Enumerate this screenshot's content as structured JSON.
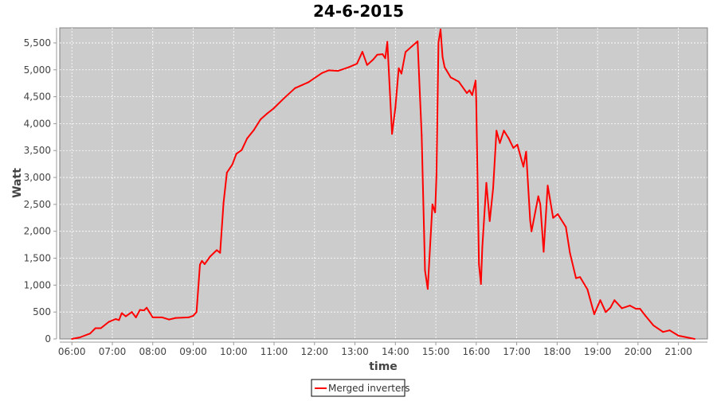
{
  "chart_data": {
    "type": "line",
    "title": "24-6-2015",
    "xlabel": "time",
    "ylabel": "Watt",
    "xlim": [
      "05:42",
      "21:43"
    ],
    "ylim": [
      0,
      5780
    ],
    "grid": true,
    "legend_position": "bottom",
    "background_color": "#cccccc",
    "x_ticks": [
      "06:00",
      "07:00",
      "08:00",
      "09:00",
      "10:00",
      "11:00",
      "12:00",
      "13:00",
      "14:00",
      "15:00",
      "16:00",
      "17:00",
      "18:00",
      "19:00",
      "20:00",
      "21:00"
    ],
    "y_ticks": [
      0,
      500,
      1000,
      1500,
      2000,
      2500,
      3000,
      3500,
      4000,
      4500,
      5000,
      5500
    ],
    "y_tick_labels": [
      "0",
      "500",
      "1,000",
      "1,500",
      "2,000",
      "2,500",
      "3,000",
      "3,500",
      "4,000",
      "4,500",
      "5,000",
      "5,500"
    ],
    "series": [
      {
        "name": "Merged inverters",
        "color": "#ff0000",
        "x": [
          "06:00",
          "06:12",
          "06:27",
          "06:35",
          "06:43",
          "06:55",
          "07:05",
          "07:10",
          "07:14",
          "07:20",
          "07:29",
          "07:35",
          "07:41",
          "07:47",
          "07:51",
          "08:00",
          "08:14",
          "08:24",
          "08:34",
          "08:53",
          "09:00",
          "09:05",
          "09:10",
          "09:13",
          "09:17",
          "09:25",
          "09:35",
          "09:40",
          "09:45",
          "09:50",
          "09:58",
          "10:04",
          "10:12",
          "10:20",
          "10:30",
          "10:40",
          "10:49",
          "10:59",
          "11:15",
          "11:31",
          "11:51",
          "12:11",
          "12:21",
          "12:35",
          "12:51",
          "13:03",
          "13:11",
          "13:18",
          "13:27",
          "13:33",
          "13:41",
          "13:45",
          "13:48",
          "13:55",
          "14:00",
          "14:05",
          "14:09",
          "14:15",
          "14:33",
          "14:39",
          "14:44",
          "14:48",
          "14:55",
          "14:59",
          "15:01",
          "15:04",
          "15:07",
          "15:10",
          "15:13",
          "15:22",
          "15:34",
          "15:46",
          "15:50",
          "15:54",
          "15:59",
          "16:00",
          "16:04",
          "16:07",
          "16:09",
          "16:15",
          "16:20",
          "16:25",
          "16:30",
          "16:35",
          "16:41",
          "16:48",
          "16:55",
          "17:01",
          "17:10",
          "17:14",
          "17:20",
          "17:22",
          "17:32",
          "17:35",
          "17:40",
          "17:46",
          "17:54",
          "18:01",
          "18:13",
          "18:19",
          "18:28",
          "18:34",
          "18:45",
          "18:55",
          "19:04",
          "19:12",
          "19:19",
          "19:25",
          "19:36",
          "19:48",
          "19:57",
          "20:03",
          "20:11",
          "20:23",
          "20:37",
          "20:47",
          "21:00",
          "21:24"
        ],
        "y": [
          0,
          30,
          100,
          200,
          200,
          320,
          370,
          350,
          480,
          420,
          500,
          400,
          540,
          530,
          580,
          400,
          400,
          360,
          390,
          400,
          430,
          500,
          1380,
          1450,
          1390,
          1530,
          1650,
          1600,
          2530,
          3090,
          3240,
          3440,
          3510,
          3725,
          3880,
          4080,
          4180,
          4280,
          4475,
          4660,
          4770,
          4940,
          4990,
          4980,
          5050,
          5115,
          5335,
          5090,
          5190,
          5280,
          5290,
          5215,
          5520,
          3810,
          4300,
          5030,
          4930,
          5330,
          5530,
          3780,
          1270,
          930,
          2500,
          2350,
          3050,
          5510,
          5750,
          5240,
          5050,
          4860,
          4780,
          4570,
          4620,
          4530,
          4800,
          4420,
          1390,
          1020,
          1700,
          2900,
          2190,
          2800,
          3870,
          3640,
          3870,
          3730,
          3550,
          3610,
          3200,
          3480,
          2200,
          2000,
          2650,
          2500,
          1620,
          2850,
          2250,
          2320,
          2080,
          1600,
          1130,
          1150,
          920,
          460,
          720,
          500,
          580,
          720,
          570,
          620,
          560,
          560,
          430,
          250,
          130,
          160,
          60,
          0
        ]
      }
    ]
  }
}
